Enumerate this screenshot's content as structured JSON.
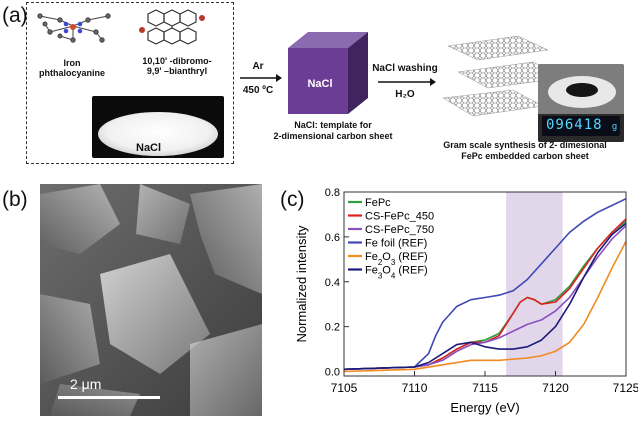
{
  "panel_a": {
    "label": "(a)",
    "molecule1": "Iron\nphthalocyanine",
    "molecule2": "10,10' -dibromo-\n9,9' –bianthryl",
    "salt_label": "NaCl",
    "arrow1_top": "Ar",
    "arrow1_bottom": "450 ºC",
    "cube_label": "NaCl",
    "cube_caption": "NaCl: template for\n2-dimensional carbon sheet",
    "arrow2_top": "NaCl washing",
    "arrow2_bottom": "H₂O",
    "product_caption": "Gram scale synthesis of 2- dimesional\nFePc embedded carbon sheet",
    "scale_reading": "096418",
    "scale_unit": "g"
  },
  "panel_b": {
    "label": "(b)",
    "scalebar": "2 μm"
  },
  "panel_c": {
    "label": "(c)"
  },
  "chart_data": {
    "type": "line",
    "xlabel": "Energy (eV)",
    "ylabel": "Normalized intensity",
    "xlim": [
      7105,
      7125
    ],
    "ylim": [
      -0.02,
      0.8
    ],
    "xticks": [
      "7105",
      "7110",
      "7115",
      "7120",
      "7125"
    ],
    "yticks": [
      "0.0",
      "0.2",
      "0.4",
      "0.6",
      "0.8"
    ],
    "highlight_band": [
      7116.5,
      7120.5
    ],
    "legend_position": "top-left",
    "series": [
      {
        "name": "FePc",
        "color": "#2e9e3e",
        "x": [
          7105,
          7110,
          7111,
          7112,
          7113,
          7114,
          7115,
          7116,
          7117,
          7117.5,
          7118,
          7118.5,
          7119,
          7120,
          7121,
          7122,
          7123,
          7124,
          7125
        ],
        "y": [
          0.01,
          0.02,
          0.03,
          0.06,
          0.1,
          0.13,
          0.14,
          0.17,
          0.26,
          0.31,
          0.33,
          0.32,
          0.3,
          0.32,
          0.38,
          0.47,
          0.55,
          0.62,
          0.67
        ]
      },
      {
        "name": "CS-FePc_450",
        "color": "#e02020",
        "x": [
          7105,
          7110,
          7111,
          7112,
          7113,
          7114,
          7115,
          7116,
          7117,
          7117.5,
          7118,
          7118.5,
          7119,
          7120,
          7121,
          7122,
          7123,
          7124,
          7125
        ],
        "y": [
          0.01,
          0.02,
          0.03,
          0.06,
          0.1,
          0.13,
          0.13,
          0.16,
          0.26,
          0.31,
          0.33,
          0.32,
          0.3,
          0.31,
          0.37,
          0.46,
          0.55,
          0.62,
          0.68
        ]
      },
      {
        "name": "CS-FePc_750",
        "color": "#8a4fc0",
        "x": [
          7105,
          7110,
          7111,
          7112,
          7113,
          7114,
          7115,
          7116,
          7117,
          7118,
          7119,
          7120,
          7121,
          7122,
          7123,
          7124,
          7125
        ],
        "y": [
          0.01,
          0.02,
          0.03,
          0.05,
          0.09,
          0.12,
          0.13,
          0.15,
          0.18,
          0.21,
          0.23,
          0.27,
          0.33,
          0.42,
          0.51,
          0.59,
          0.65
        ]
      },
      {
        "name": "Fe foil (REF)",
        "color": "#3f48b4",
        "x": [
          7105,
          7110,
          7111,
          7111.5,
          7112,
          7113,
          7114,
          7115,
          7116,
          7117,
          7118,
          7119,
          7120,
          7121,
          7122,
          7123,
          7124,
          7125
        ],
        "y": [
          0.01,
          0.02,
          0.08,
          0.16,
          0.22,
          0.29,
          0.32,
          0.33,
          0.34,
          0.36,
          0.41,
          0.48,
          0.55,
          0.62,
          0.67,
          0.71,
          0.74,
          0.77
        ]
      },
      {
        "name": "Fe2O3 (REF)",
        "color": "#f28a20",
        "x": [
          7105,
          7110,
          7112,
          7114,
          7116,
          7118,
          7119,
          7120,
          7121,
          7122,
          7123,
          7124,
          7125
        ],
        "y": [
          0.0,
          0.01,
          0.03,
          0.05,
          0.05,
          0.06,
          0.07,
          0.09,
          0.13,
          0.21,
          0.33,
          0.46,
          0.58
        ]
      },
      {
        "name": "Fe3O4 (REF)",
        "color": "#1a1a7a",
        "x": [
          7105,
          7110,
          7111,
          7112,
          7113,
          7114,
          7115,
          7116,
          7117,
          7118,
          7119,
          7120,
          7121,
          7122,
          7123,
          7124,
          7125
        ],
        "y": [
          0.01,
          0.02,
          0.04,
          0.08,
          0.12,
          0.13,
          0.11,
          0.1,
          0.1,
          0.11,
          0.14,
          0.2,
          0.3,
          0.42,
          0.53,
          0.61,
          0.66
        ]
      }
    ],
    "legend_labels": [
      {
        "a": "FePc",
        "sub": "",
        "b": ""
      },
      {
        "a": "CS-FePc_450",
        "sub": "",
        "b": ""
      },
      {
        "a": "CS-FePc_750",
        "sub": "",
        "b": ""
      },
      {
        "a": "Fe foil (REF)",
        "sub": "",
        "b": ""
      },
      {
        "a": "Fe",
        "sub": "2",
        "b": "O",
        "sub2": "3",
        "c": " (REF)"
      },
      {
        "a": "Fe",
        "sub": "3",
        "b": "O",
        "sub2": "4",
        "c": " (REF)"
      }
    ]
  }
}
